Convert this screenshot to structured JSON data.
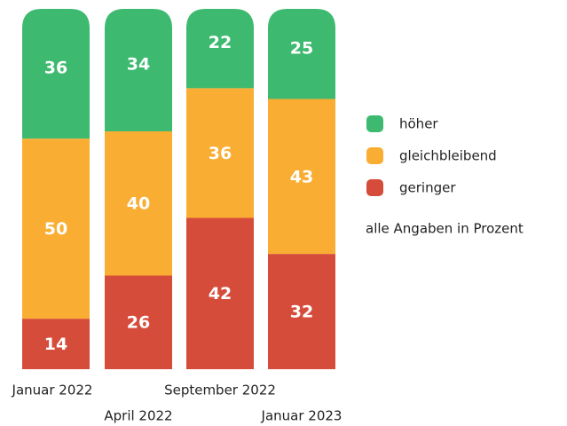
{
  "chart_data": {
    "type": "stacked_bar",
    "categories": [
      "Januar 2022",
      "April 2022",
      "September 2022",
      "Januar 2023"
    ],
    "series": [
      {
        "name": "höher",
        "color": "#3dba6f",
        "values": [
          36,
          34,
          22,
          25
        ]
      },
      {
        "name": "gleichbleibend",
        "color": "#f9ae33",
        "values": [
          50,
          40,
          36,
          43
        ]
      },
      {
        "name": "geringer",
        "color": "#d64c3b",
        "values": [
          14,
          26,
          42,
          32
        ]
      }
    ],
    "ylim": [
      0,
      100
    ],
    "note": "alle Angaben in Prozent"
  }
}
